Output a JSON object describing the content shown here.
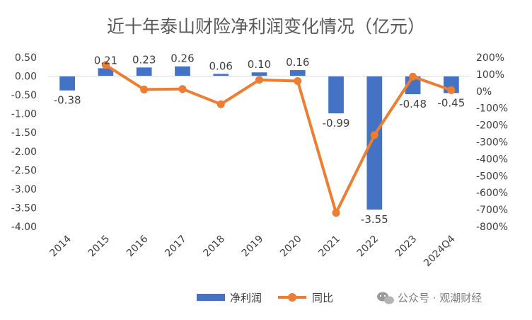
{
  "chart_data": {
    "type": "bar",
    "title": "近十年泰山财险净利润变化情况（亿元）",
    "categories": [
      "2014",
      "2015",
      "2016",
      "2017",
      "2018",
      "2019",
      "2020",
      "2021",
      "2022",
      "2023",
      "2024Q4"
    ],
    "series": [
      {
        "name": "净利润",
        "type": "bar",
        "axis": "left",
        "color": "#4472C4",
        "values": [
          -0.38,
          0.21,
          0.23,
          0.26,
          0.06,
          0.1,
          0.16,
          -0.99,
          -3.55,
          -0.48,
          -0.45
        ],
        "labels": [
          "-0.38",
          "0.21",
          "0.23",
          "0.26",
          "0.06",
          "0.10",
          "0.16",
          "-0.99",
          "-3.55",
          "-0.48",
          "-0.45"
        ]
      },
      {
        "name": "同比",
        "type": "line",
        "axis": "right",
        "color": "#ED7D31",
        "values": [
          null,
          155,
          10,
          13,
          -77,
          67,
          60,
          -719,
          -259,
          86,
          6
        ]
      }
    ],
    "left_axis": {
      "ylim": [
        -4.0,
        0.5
      ],
      "ticks": [
        0.5,
        0.0,
        -0.5,
        -1.0,
        -1.5,
        -2.0,
        -2.5,
        -3.0,
        -3.5,
        -4.0
      ],
      "tick_labels": [
        "0.50",
        "0.00",
        "-0.50",
        "-1.00",
        "-1.50",
        "-2.00",
        "-2.50",
        "-3.00",
        "-3.50",
        "-4.00"
      ]
    },
    "right_axis": {
      "ylim": [
        -800,
        200
      ],
      "ticks": [
        200,
        100,
        0,
        -100,
        -200,
        -300,
        -400,
        -500,
        -600,
        -700,
        -800
      ],
      "tick_labels": [
        "200%",
        "100%",
        "0%",
        "-100%",
        "-200%",
        "-300%",
        "-400%",
        "-500%",
        "-600%",
        "-700%",
        "-800%"
      ]
    },
    "grid": false,
    "legend": {
      "placement": "bottom"
    }
  },
  "watermark": {
    "text": "公众号 · 观潮财经",
    "icon": "wechat-icon"
  }
}
